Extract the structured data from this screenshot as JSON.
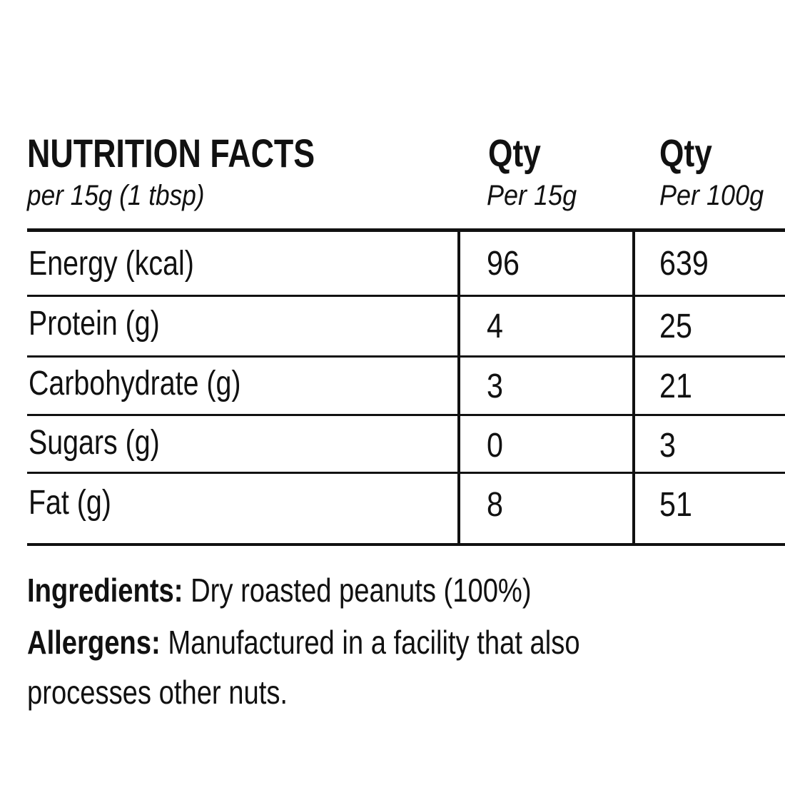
{
  "header": {
    "title": "NUTRITION FACTS",
    "serving": "per 15g (1 tbsp)",
    "col1_title": "Qty",
    "col1_sub": "Per 15g",
    "col2_title": "Qty",
    "col2_sub": "Per 100g"
  },
  "rows": [
    {
      "label": "Energy (kcal)",
      "per15": "96",
      "per100": "639"
    },
    {
      "label": "Protein (g)",
      "per15": "4",
      "per100": "25"
    },
    {
      "label": "Carbohydrate (g)",
      "per15": "3",
      "per100": "21"
    },
    {
      "label": "Sugars (g)",
      "per15": "0",
      "per100": "3"
    },
    {
      "label": "Fat (g)",
      "per15": "8",
      "per100": "51"
    }
  ],
  "ingredients": {
    "label": "Ingredients:",
    "text": "Dry roasted peanuts (100%)"
  },
  "allergens": {
    "label": "Allergens:",
    "text_line1": "Manufactured in a facility that also",
    "text_line2": "processes other nuts."
  }
}
